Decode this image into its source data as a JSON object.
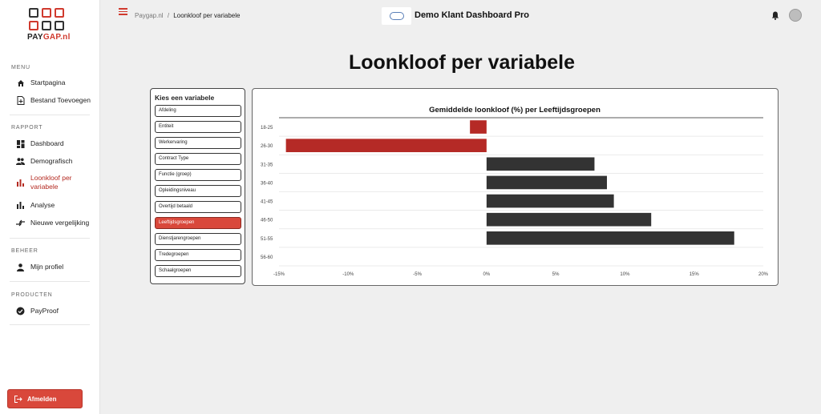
{
  "sidebar": {
    "logo_text_1": "PAY",
    "logo_text_2": "GAP.nl",
    "sections": {
      "menu": "MENU",
      "rapport": "RAPPORT",
      "beheer": "BEHEER",
      "producten": "PRODUCTEN"
    },
    "items": {
      "startpagina": "Startpagina",
      "bestand": "Bestand Toevoegen",
      "dashboard": "Dashboard",
      "demografisch": "Demografisch",
      "loonkloof": "Loonkloof per variabele",
      "analyse": "Analyse",
      "vergelijking": "Nieuwe vergelijking",
      "profiel": "Mijn profiel",
      "payproof": "PayProof"
    },
    "logout": "Afmelden"
  },
  "header": {
    "breadcrumb_root": "Paygap.nl",
    "breadcrumb_sep": "/",
    "breadcrumb_current": "Loonkloof per variabele",
    "app_title": "Demo Klant Dashboard Pro"
  },
  "page_title": "Loonkloof per variabele",
  "selector": {
    "title": "Kies een variabele",
    "options": [
      "Afdeling",
      "Entiteit",
      "Werkervaring",
      "Contract Type",
      "Functie (groep)",
      "Opleidingsniveau",
      "Overtijd betaald",
      "Leeftijdsgroepen",
      "Dienstjarengroepen",
      "Tredegroepen",
      "Schaalgroepen"
    ],
    "selected_index": 7
  },
  "colors": {
    "accent": "#d9483b",
    "negative_bar": "#b52a26",
    "positive_bar": "#333333"
  },
  "chart_data": {
    "type": "bar",
    "orientation": "horizontal",
    "title": "Gemiddelde loonkloof (%) per Leeftijdsgroepen",
    "categories": [
      "18-25",
      "26-30",
      "31-35",
      "36-40",
      "41-45",
      "46-50",
      "51-55",
      "56-60"
    ],
    "values": [
      -1.2,
      -14.5,
      7.8,
      8.7,
      9.2,
      11.9,
      17.9,
      0
    ],
    "xlim": [
      -15,
      20
    ],
    "xticks": [
      "-15%",
      "-10%",
      "-5%",
      "0%",
      "5%",
      "10%",
      "15%",
      "20%"
    ],
    "xtick_values": [
      -15,
      -10,
      -5,
      0,
      5,
      10,
      15,
      20
    ],
    "grid": "horizontal"
  }
}
